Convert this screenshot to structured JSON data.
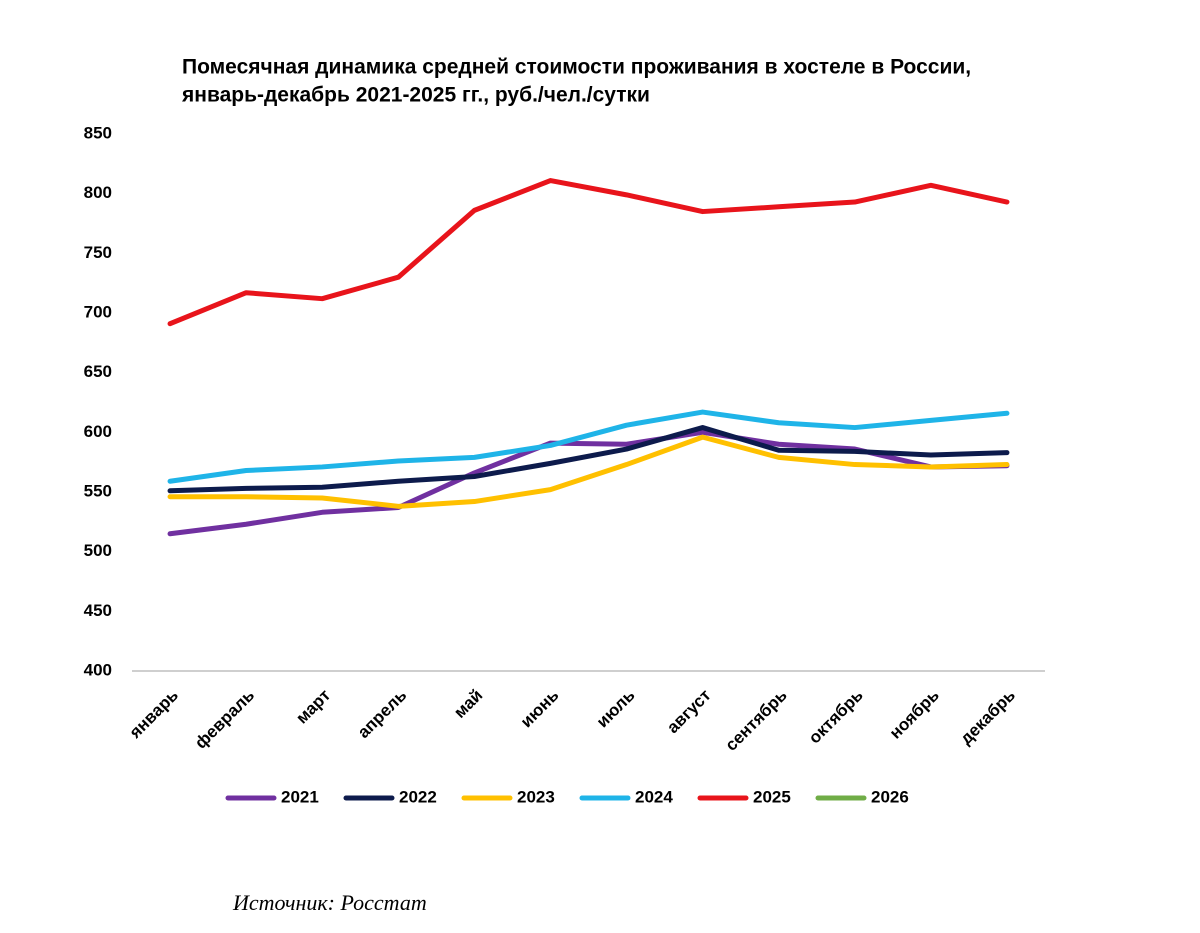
{
  "chart_data": {
    "type": "line",
    "title": [
      "Помесячная динамика средней стоимости проживания в хостеле в России,",
      "январь-декабрь 2021-2025 гг., руб./чел./сутки"
    ],
    "categories": [
      "январь",
      "февраль",
      "март",
      "апрель",
      "май",
      "июнь",
      "июль",
      "август",
      "сентябрь",
      "октябрь",
      "ноябрь",
      "декабрь"
    ],
    "series": [
      {
        "name": "2021",
        "color": "#7030a0",
        "values": [
          515,
          523,
          533,
          537,
          566,
          591,
          590,
          600,
          590,
          586,
          571,
          572
        ]
      },
      {
        "name": "2022",
        "color": "#0d1b4c",
        "values": [
          551,
          553,
          554,
          559,
          563,
          574,
          586,
          604,
          585,
          584,
          581,
          583
        ]
      },
      {
        "name": "2023",
        "color": "#ffc000",
        "values": [
          546,
          546,
          545,
          538,
          542,
          552,
          573,
          596,
          579,
          573,
          571,
          573
        ]
      },
      {
        "name": "2024",
        "color": "#1fb4e8",
        "values": [
          559,
          568,
          571,
          576,
          579,
          589,
          606,
          617,
          608,
          604,
          610,
          616
        ]
      },
      {
        "name": "2025",
        "color": "#e8141b",
        "values": [
          691,
          717,
          712,
          730,
          786,
          811,
          799,
          785,
          789,
          793,
          807,
          793
        ]
      },
      {
        "name": "2026",
        "color": "#70ad47",
        "values": [
          null,
          null,
          null,
          null,
          null,
          null,
          null,
          null,
          null,
          null,
          null,
          null
        ]
      }
    ],
    "ylim": [
      400,
      850
    ],
    "yticks": [
      400,
      450,
      500,
      550,
      600,
      650,
      700,
      750,
      800,
      850
    ],
    "grid": false,
    "legend": "bottom",
    "source": "Источник: Росстат"
  }
}
